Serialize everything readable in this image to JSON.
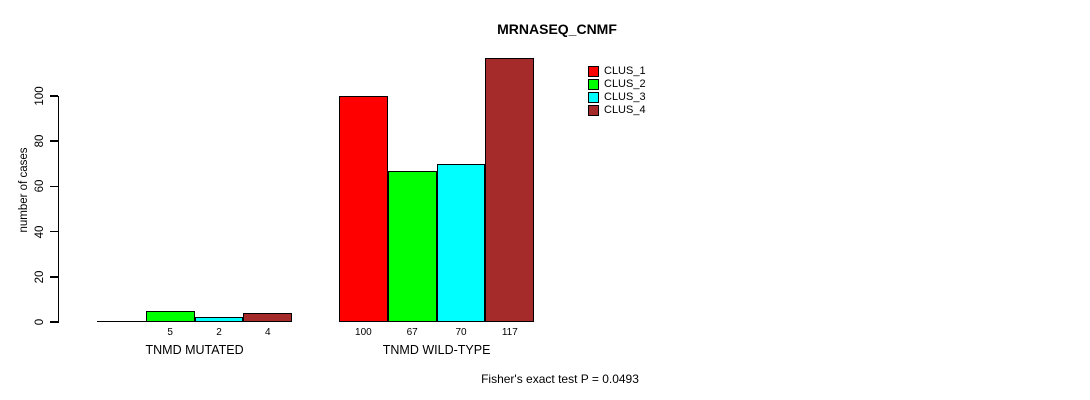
{
  "title": "MRNASEQ_CNMF",
  "y_axis": {
    "label": "number of cases",
    "ticks": [
      0,
      20,
      40,
      60,
      80,
      100
    ]
  },
  "legend": {
    "items": [
      {
        "label": "CLUS_1",
        "color": "#FF0000"
      },
      {
        "label": "CLUS_2",
        "color": "#00FF00"
      },
      {
        "label": "CLUS_3",
        "color": "#00FFFF"
      },
      {
        "label": "CLUS_4",
        "color": "#A52A2A"
      }
    ]
  },
  "footer": "Fisher's exact test P = 0.0493",
  "chart_data": {
    "type": "bar",
    "title": "MRNASEQ_CNMF",
    "xlabel": "",
    "ylabel": "number of cases",
    "ylim": [
      0,
      100
    ],
    "yticks": [
      0,
      20,
      40,
      60,
      80,
      100
    ],
    "categories": [
      "TNMD MUTATED",
      "TNMD WILD-TYPE"
    ],
    "series": [
      {
        "name": "CLUS_1",
        "color": "#FF0000",
        "values": [
          0,
          100
        ]
      },
      {
        "name": "CLUS_2",
        "color": "#00FF00",
        "values": [
          5,
          67
        ]
      },
      {
        "name": "CLUS_3",
        "color": "#00FFFF",
        "values": [
          2,
          70
        ]
      },
      {
        "name": "CLUS_4",
        "color": "#A52A2A",
        "values": [
          4,
          117
        ]
      }
    ],
    "bar_value_labels_shown": true,
    "zero_values_unlabeled": true,
    "annotation": "Fisher's exact test P = 0.0493",
    "legend_position": "top-right",
    "grid": false
  }
}
